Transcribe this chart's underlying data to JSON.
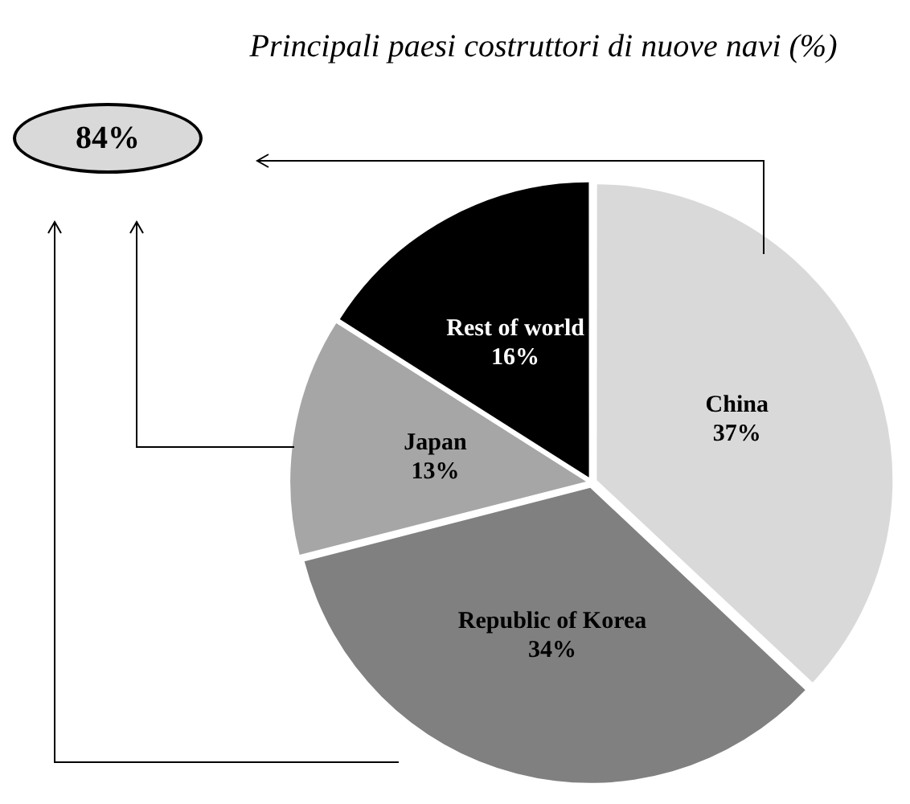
{
  "chart_data": {
    "type": "pie",
    "title": "Principali paesi costruttori di nuove navi (%)",
    "categories": [
      "China",
      "Republic of Korea",
      "Japan",
      "Rest of world"
    ],
    "values": [
      37,
      34,
      13,
      16
    ],
    "value_labels": [
      "37%",
      "34%",
      "13%",
      "16%"
    ],
    "colors": [
      "#d9d9d9",
      "#808080",
      "#a6a6a6",
      "#000000"
    ],
    "annotations": [
      "84%"
    ]
  }
}
